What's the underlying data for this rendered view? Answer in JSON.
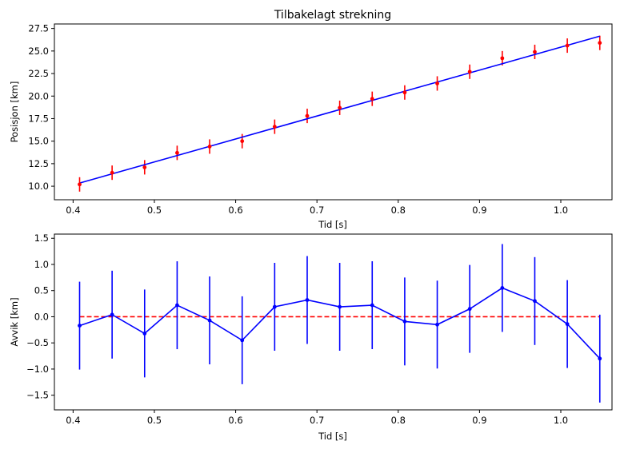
{
  "chart_data": [
    {
      "type": "scatter",
      "title": "Tilbakelagt strekning",
      "xlabel": "Tid [s]",
      "ylabel": "Posisjon [km]",
      "xlim": [
        0.377,
        1.063
      ],
      "ylim": [
        8.5,
        28.0
      ],
      "xticks": [
        0.4,
        0.5,
        0.6,
        0.7,
        0.8,
        0.9,
        1.0
      ],
      "xtick_labels": [
        "0.4",
        "0.5",
        "0.6",
        "0.7",
        "0.8",
        "0.9",
        "1.0"
      ],
      "yticks": [
        10.0,
        12.5,
        15.0,
        17.5,
        20.0,
        22.5,
        25.0,
        27.5
      ],
      "ytick_labels": [
        "10.0",
        "12.5",
        "15.0",
        "17.5",
        "20.0",
        "22.5",
        "25.0",
        "27.5"
      ],
      "grid": false,
      "series": [
        {
          "kind": "errorbar",
          "color": "#ff0000",
          "x": [
            0.408,
            0.448,
            0.488,
            0.528,
            0.568,
            0.608,
            0.648,
            0.688,
            0.728,
            0.768,
            0.808,
            0.848,
            0.888,
            0.928,
            0.968,
            1.008,
            1.048
          ],
          "y": [
            10.2,
            11.5,
            12.1,
            13.7,
            14.4,
            15.0,
            16.6,
            17.8,
            18.7,
            19.7,
            20.4,
            21.4,
            22.7,
            24.2,
            24.9,
            25.6,
            25.9
          ],
          "yerr": 0.8
        },
        {
          "kind": "line",
          "color": "#0000ff",
          "x": [
            0.408,
            1.048
          ],
          "y": [
            10.35,
            26.65
          ]
        }
      ]
    },
    {
      "type": "line",
      "title": "",
      "xlabel": "Tid [s]",
      "ylabel": "Avvik [km]",
      "xlim": [
        0.377,
        1.063
      ],
      "ylim": [
        -1.78,
        1.58
      ],
      "xticks": [
        0.4,
        0.5,
        0.6,
        0.7,
        0.8,
        0.9,
        1.0
      ],
      "xtick_labels": [
        "0.4",
        "0.5",
        "0.6",
        "0.7",
        "0.8",
        "0.9",
        "1.0"
      ],
      "yticks": [
        -1.5,
        -1.0,
        -0.5,
        0.0,
        0.5,
        1.0,
        1.5
      ],
      "ytick_labels": [
        "−1.5",
        "−1.0",
        "−0.5",
        "0.0",
        "0.5",
        "1.0",
        "1.5"
      ],
      "grid": false,
      "series": [
        {
          "kind": "errorbar-line",
          "color": "#0000ff",
          "x": [
            0.408,
            0.448,
            0.488,
            0.528,
            0.568,
            0.608,
            0.648,
            0.688,
            0.728,
            0.768,
            0.808,
            0.848,
            0.888,
            0.928,
            0.968,
            1.008,
            1.048
          ],
          "y": [
            -0.17,
            0.04,
            -0.32,
            0.22,
            -0.07,
            -0.45,
            0.19,
            0.32,
            0.19,
            0.22,
            -0.09,
            -0.15,
            0.15,
            0.55,
            0.3,
            -0.14,
            -0.8
          ],
          "yerr": 0.84
        },
        {
          "kind": "dashed-line",
          "color": "#ff0000",
          "x": [
            0.408,
            1.048
          ],
          "y": [
            0.0,
            0.0
          ]
        }
      ]
    }
  ]
}
